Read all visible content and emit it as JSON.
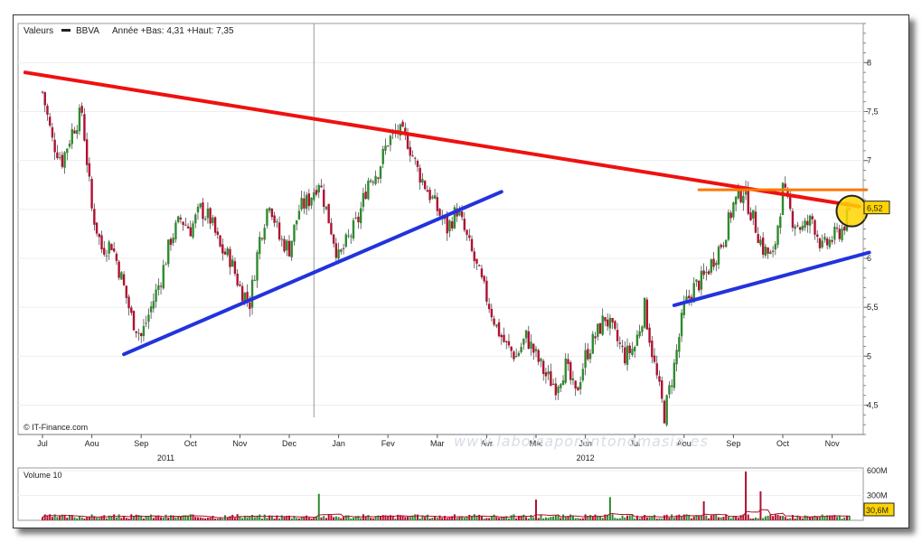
{
  "header": {
    "label": "Valeurs",
    "ticker": "BBVA",
    "range_text": "Année +Bas: 4,31 +Haut: 7,35"
  },
  "credit": "© IT-Finance.com",
  "watermark": "www.labolsaporantonomasia.es",
  "volume_title": "Volume 10",
  "colors": {
    "up": "#2e8b2e",
    "down": "#b01030",
    "resistance": "#ee1111",
    "support": "#2233dd",
    "level": "#ff7700",
    "highlight": "#ffd400"
  },
  "chart_data": {
    "type": "line",
    "title": "BBVA",
    "ylim": [
      4.2,
      8.4
    ],
    "y_ticks": [
      {
        "v": 8,
        "label": "8"
      },
      {
        "v": 7.5,
        "label": "7,5"
      },
      {
        "v": 7,
        "label": "7"
      },
      {
        "v": 6.5,
        "label": "6,5"
      },
      {
        "v": 6,
        "label": "6"
      },
      {
        "v": 5.5,
        "label": "5,5"
      },
      {
        "v": 5,
        "label": "5"
      },
      {
        "v": 4.5,
        "label": "4,5"
      }
    ],
    "months": [
      "Jul",
      "Aou",
      "Sep",
      "Oct",
      "Nov",
      "Dec",
      "Jan",
      "Fev",
      "Mar",
      "Avr",
      "Mai",
      "Jun",
      "Jul",
      "Aou",
      "Sep",
      "Oct",
      "Nov"
    ],
    "years": [
      {
        "label": "2011",
        "month_index": 2.5
      },
      {
        "label": "2012",
        "month_index": 11
      }
    ],
    "year_separator_index": 6,
    "last_price": 6.52,
    "last_price_label": "6,52",
    "price_path": [
      [
        0.0,
        7.7
      ],
      [
        0.2,
        7.2
      ],
      [
        0.4,
        7.0
      ],
      [
        0.6,
        7.3
      ],
      [
        0.8,
        7.5
      ],
      [
        1.0,
        6.5
      ],
      [
        1.2,
        6.1
      ],
      [
        1.4,
        6.15
      ],
      [
        1.6,
        5.8
      ],
      [
        1.8,
        5.4
      ],
      [
        2.0,
        5.2
      ],
      [
        2.2,
        5.5
      ],
      [
        2.4,
        5.8
      ],
      [
        2.6,
        6.2
      ],
      [
        2.8,
        6.4
      ],
      [
        3.0,
        6.3
      ],
      [
        3.2,
        6.5
      ],
      [
        3.4,
        6.4
      ],
      [
        3.6,
        6.1
      ],
      [
        3.8,
        6.0
      ],
      [
        4.0,
        5.7
      ],
      [
        4.2,
        5.55
      ],
      [
        4.4,
        6.2
      ],
      [
        4.6,
        6.6
      ],
      [
        4.8,
        6.2
      ],
      [
        5.0,
        6.1
      ],
      [
        5.2,
        6.5
      ],
      [
        5.4,
        6.6
      ],
      [
        5.6,
        6.8
      ],
      [
        5.8,
        6.4
      ],
      [
        6.0,
        6.0
      ],
      [
        6.2,
        6.2
      ],
      [
        6.4,
        6.4
      ],
      [
        6.6,
        6.8
      ],
      [
        6.8,
        6.9
      ],
      [
        7.0,
        7.2
      ],
      [
        7.2,
        7.3
      ],
      [
        7.4,
        7.2
      ],
      [
        7.6,
        6.9
      ],
      [
        7.8,
        6.7
      ],
      [
        8.0,
        6.5
      ],
      [
        8.2,
        6.3
      ],
      [
        8.4,
        6.5
      ],
      [
        8.6,
        6.2
      ],
      [
        8.8,
        5.9
      ],
      [
        9.0,
        5.6
      ],
      [
        9.2,
        5.3
      ],
      [
        9.4,
        5.1
      ],
      [
        9.6,
        5.0
      ],
      [
        9.8,
        5.2
      ],
      [
        10.0,
        5.0
      ],
      [
        10.2,
        4.8
      ],
      [
        10.4,
        4.7
      ],
      [
        10.6,
        4.9
      ],
      [
        10.8,
        4.6
      ],
      [
        11.0,
        5.0
      ],
      [
        11.2,
        5.2
      ],
      [
        11.4,
        5.4
      ],
      [
        11.6,
        5.2
      ],
      [
        11.8,
        5.0
      ],
      [
        12.0,
        5.1
      ],
      [
        12.2,
        5.5
      ],
      [
        12.4,
        4.9
      ],
      [
        12.6,
        4.4
      ],
      [
        12.8,
        4.9
      ],
      [
        13.0,
        5.5
      ],
      [
        13.2,
        5.7
      ],
      [
        13.4,
        5.8
      ],
      [
        13.6,
        6.0
      ],
      [
        13.8,
        6.2
      ],
      [
        14.0,
        6.55
      ],
      [
        14.2,
        6.7
      ],
      [
        14.4,
        6.4
      ],
      [
        14.6,
        6.1
      ],
      [
        14.8,
        6.0
      ],
      [
        15.0,
        6.7
      ],
      [
        15.2,
        6.4
      ],
      [
        15.4,
        6.3
      ],
      [
        15.6,
        6.4
      ],
      [
        15.8,
        6.1
      ],
      [
        16.0,
        6.2
      ],
      [
        16.2,
        6.3
      ],
      [
        16.4,
        6.52
      ]
    ],
    "trendlines": [
      {
        "name": "resistance",
        "color": "resistance",
        "from": [
          -0.35,
          7.9
        ],
        "to": [
          16.55,
          6.53
        ]
      },
      {
        "name": "support-1",
        "color": "support",
        "from": [
          1.65,
          5.02
        ],
        "to": [
          9.3,
          6.68
        ]
      },
      {
        "name": "support-2",
        "color": "support",
        "from": [
          12.8,
          5.52
        ],
        "to": [
          16.75,
          6.06
        ]
      },
      {
        "name": "level",
        "color": "level",
        "from": [
          13.3,
          6.7
        ],
        "to": [
          16.7,
          6.7
        ]
      }
    ],
    "volume": {
      "ylim": [
        0,
        600
      ],
      "ticks": [
        {
          "v": 600,
          "label": "600M"
        },
        {
          "v": 300,
          "label": "300M"
        }
      ],
      "last_label": "30,6M",
      "spikes": [
        {
          "month": 5.6,
          "value": 320
        },
        {
          "month": 10.0,
          "value": 250
        },
        {
          "month": 11.5,
          "value": 280
        },
        {
          "month": 13.4,
          "value": 230
        },
        {
          "month": 14.25,
          "value": 590
        },
        {
          "month": 14.55,
          "value": 350
        }
      ]
    }
  }
}
